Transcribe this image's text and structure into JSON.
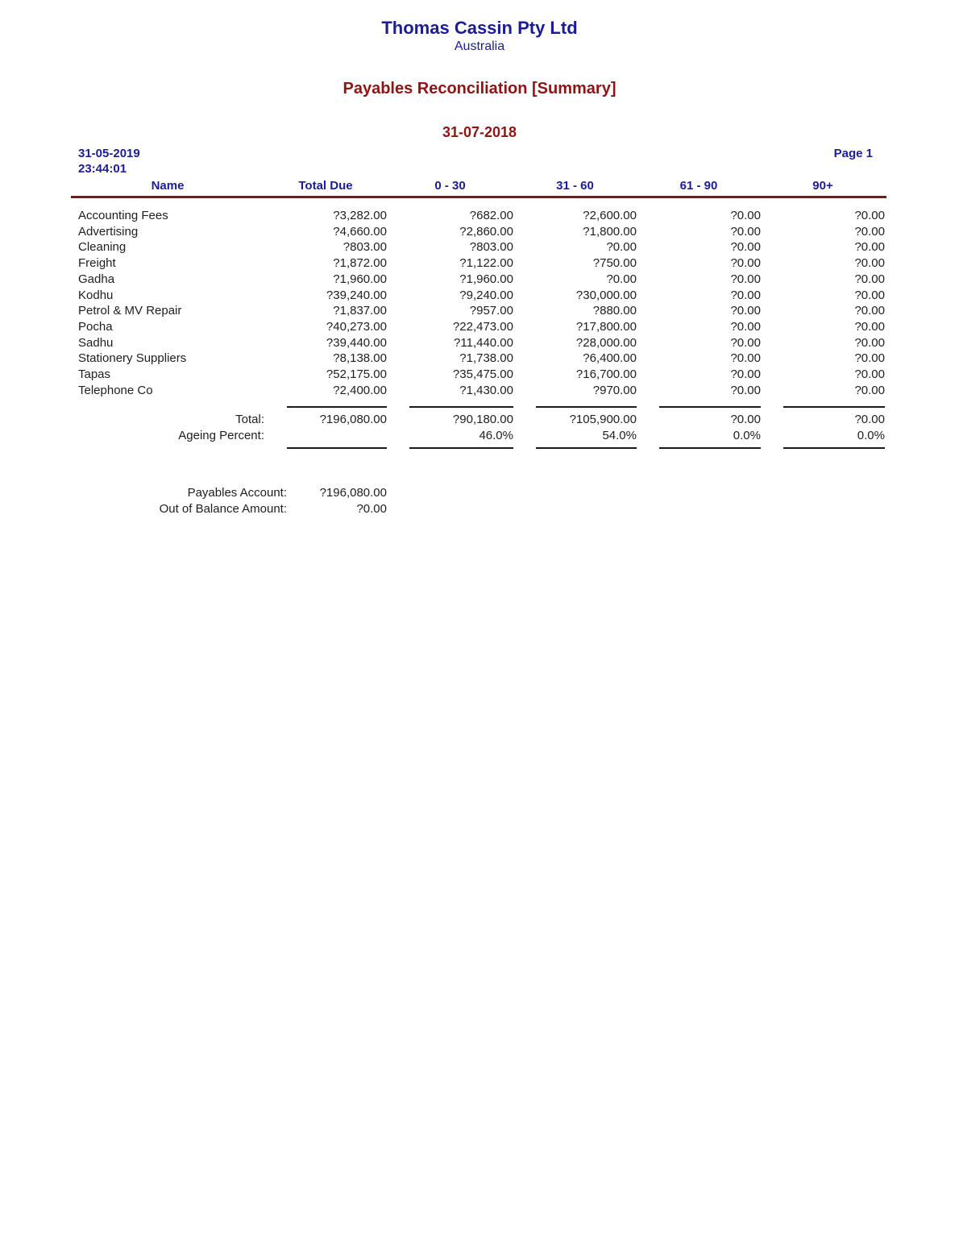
{
  "header": {
    "company": "Thomas Cassin Pty Ltd",
    "country": "Australia",
    "report_title": "Payables Reconciliation [Summary]",
    "report_date": "31-07-2018",
    "generated_date": "31-05-2019",
    "generated_time": "23:44:01",
    "page": "Page 1"
  },
  "colors": {
    "heading_navy": "#1c1c94",
    "heading_maroon": "#8e1515",
    "rule_maroon": "#7e1818",
    "body_text": "#202020"
  },
  "table": {
    "columns": [
      "Name",
      "Total Due",
      "0 - 30",
      "31 - 60",
      "61 - 90",
      "90+"
    ],
    "rows": [
      {
        "name": "Accounting Fees",
        "total_due": "?3,282.00",
        "d0_30": "?682.00",
        "d31_60": "?2,600.00",
        "d61_90": "?0.00",
        "d90": "?0.00"
      },
      {
        "name": "Advertising",
        "total_due": "?4,660.00",
        "d0_30": "?2,860.00",
        "d31_60": "?1,800.00",
        "d61_90": "?0.00",
        "d90": "?0.00"
      },
      {
        "name": "Cleaning",
        "total_due": "?803.00",
        "d0_30": "?803.00",
        "d31_60": "?0.00",
        "d61_90": "?0.00",
        "d90": "?0.00"
      },
      {
        "name": "Freight",
        "total_due": "?1,872.00",
        "d0_30": "?1,122.00",
        "d31_60": "?750.00",
        "d61_90": "?0.00",
        "d90": "?0.00"
      },
      {
        "name": "Gadha",
        "total_due": "?1,960.00",
        "d0_30": "?1,960.00",
        "d31_60": "?0.00",
        "d61_90": "?0.00",
        "d90": "?0.00"
      },
      {
        "name": "Kodhu",
        "total_due": "?39,240.00",
        "d0_30": "?9,240.00",
        "d31_60": "?30,000.00",
        "d61_90": "?0.00",
        "d90": "?0.00"
      },
      {
        "name": "Petrol & MV Repair",
        "total_due": "?1,837.00",
        "d0_30": "?957.00",
        "d31_60": "?880.00",
        "d61_90": "?0.00",
        "d90": "?0.00"
      },
      {
        "name": "Pocha",
        "total_due": "?40,273.00",
        "d0_30": "?22,473.00",
        "d31_60": "?17,800.00",
        "d61_90": "?0.00",
        "d90": "?0.00"
      },
      {
        "name": "Sadhu",
        "total_due": "?39,440.00",
        "d0_30": "?11,440.00",
        "d31_60": "?28,000.00",
        "d61_90": "?0.00",
        "d90": "?0.00"
      },
      {
        "name": "Stationery Suppliers",
        "total_due": "?8,138.00",
        "d0_30": "?1,738.00",
        "d31_60": "?6,400.00",
        "d61_90": "?0.00",
        "d90": "?0.00"
      },
      {
        "name": "Tapas",
        "total_due": "?52,175.00",
        "d0_30": "?35,475.00",
        "d31_60": "?16,700.00",
        "d61_90": "?0.00",
        "d90": "?0.00"
      },
      {
        "name": "Telephone Co",
        "total_due": "?2,400.00",
        "d0_30": "?1,430.00",
        "d31_60": "?970.00",
        "d61_90": "?0.00",
        "d90": "?0.00"
      }
    ],
    "totals": {
      "label": "Total:",
      "total_due": "?196,080.00",
      "d0_30": "?90,180.00",
      "d31_60": "?105,900.00",
      "d61_90": "?0.00",
      "d90": "?0.00"
    },
    "ageing": {
      "label": "Ageing Percent:",
      "total_due": "",
      "d0_30": "46.0%",
      "d31_60": "54.0%",
      "d61_90": "0.0%",
      "d90": "0.0%"
    }
  },
  "summary": {
    "payables_account_label": "Payables Account:",
    "payables_account_value": "?196,080.00",
    "out_of_balance_label": "Out of Balance Amount:",
    "out_of_balance_value": "?0.00"
  }
}
